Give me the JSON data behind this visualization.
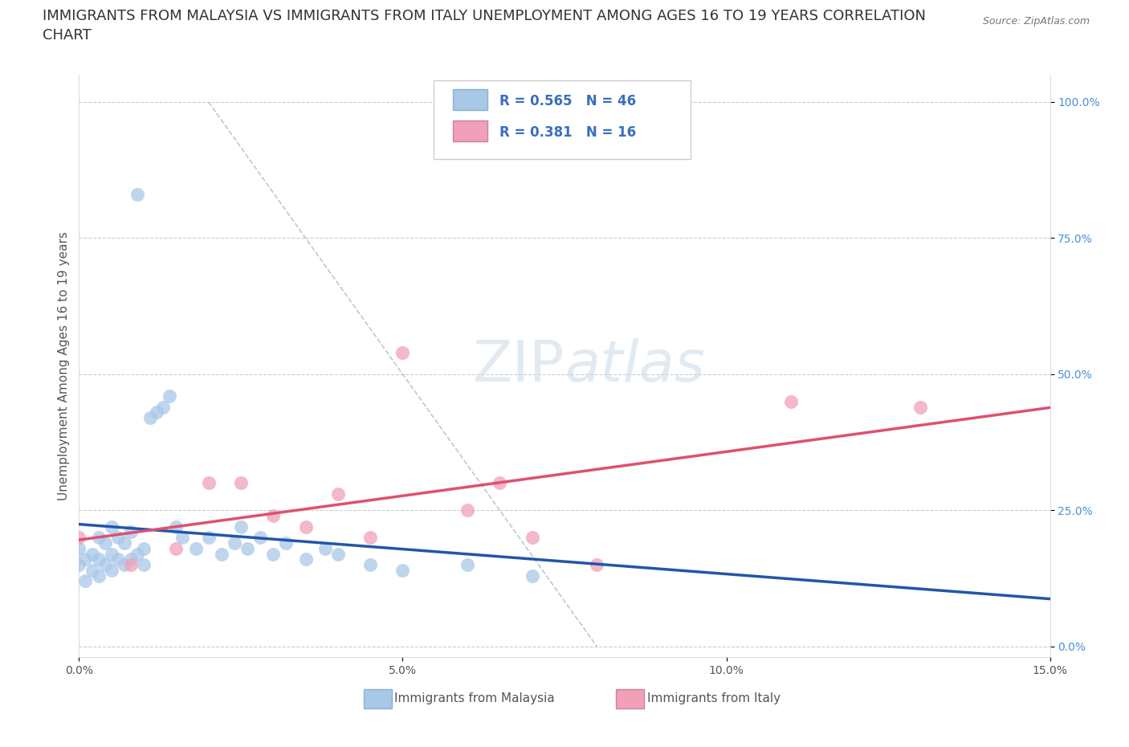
{
  "title_line1": "IMMIGRANTS FROM MALAYSIA VS IMMIGRANTS FROM ITALY UNEMPLOYMENT AMONG AGES 16 TO 19 YEARS CORRELATION",
  "title_line2": "CHART",
  "source": "Source: ZipAtlas.com",
  "ylabel": "Unemployment Among Ages 16 to 19 years",
  "xlim": [
    0.0,
    0.15
  ],
  "ylim": [
    -0.02,
    1.05
  ],
  "xticks": [
    0.0,
    0.05,
    0.1,
    0.15
  ],
  "xtick_labels": [
    "0.0%",
    "5.0%",
    "10.0%",
    "15.0%"
  ],
  "yticks": [
    0.0,
    0.25,
    0.5,
    0.75,
    1.0
  ],
  "ytick_labels": [
    "0.0%",
    "25.0%",
    "50.0%",
    "75.0%",
    "100.0%"
  ],
  "malaysia_color": "#a8c8e8",
  "malaysia_line_color": "#2255aa",
  "italy_color": "#f0a0b8",
  "italy_line_color": "#e05070",
  "malaysia_R": 0.565,
  "malaysia_N": 46,
  "italy_R": 0.381,
  "italy_N": 16,
  "background_color": "#ffffff",
  "grid_color": "#cccccc",
  "legend_box_color": "#f0f4f8",
  "title_fontsize": 13,
  "axis_fontsize": 11,
  "tick_fontsize": 10,
  "watermark_color": "#d0dde8",
  "malaysia_scatter_x": [
    0.0,
    0.0,
    0.001,
    0.001,
    0.002,
    0.002,
    0.003,
    0.003,
    0.003,
    0.004,
    0.004,
    0.005,
    0.005,
    0.005,
    0.006,
    0.006,
    0.007,
    0.007,
    0.008,
    0.008,
    0.009,
    0.009,
    0.01,
    0.01,
    0.011,
    0.012,
    0.013,
    0.014,
    0.015,
    0.016,
    0.018,
    0.02,
    0.022,
    0.024,
    0.025,
    0.026,
    0.028,
    0.03,
    0.032,
    0.035,
    0.038,
    0.04,
    0.045,
    0.05,
    0.06,
    0.07
  ],
  "malaysia_scatter_y": [
    0.15,
    0.18,
    0.12,
    0.16,
    0.14,
    0.17,
    0.13,
    0.16,
    0.2,
    0.15,
    0.19,
    0.14,
    0.17,
    0.22,
    0.16,
    0.2,
    0.15,
    0.19,
    0.16,
    0.21,
    0.17,
    0.83,
    0.15,
    0.18,
    0.42,
    0.43,
    0.44,
    0.46,
    0.22,
    0.2,
    0.18,
    0.2,
    0.17,
    0.19,
    0.22,
    0.18,
    0.2,
    0.17,
    0.19,
    0.16,
    0.18,
    0.17,
    0.15,
    0.14,
    0.15,
    0.13
  ],
  "italy_scatter_x": [
    0.0,
    0.008,
    0.015,
    0.02,
    0.025,
    0.03,
    0.035,
    0.04,
    0.045,
    0.05,
    0.06,
    0.065,
    0.07,
    0.08,
    0.11,
    0.13
  ],
  "italy_scatter_y": [
    0.2,
    0.15,
    0.18,
    0.3,
    0.3,
    0.24,
    0.22,
    0.28,
    0.2,
    0.54,
    0.25,
    0.3,
    0.2,
    0.15,
    0.45,
    0.44
  ]
}
